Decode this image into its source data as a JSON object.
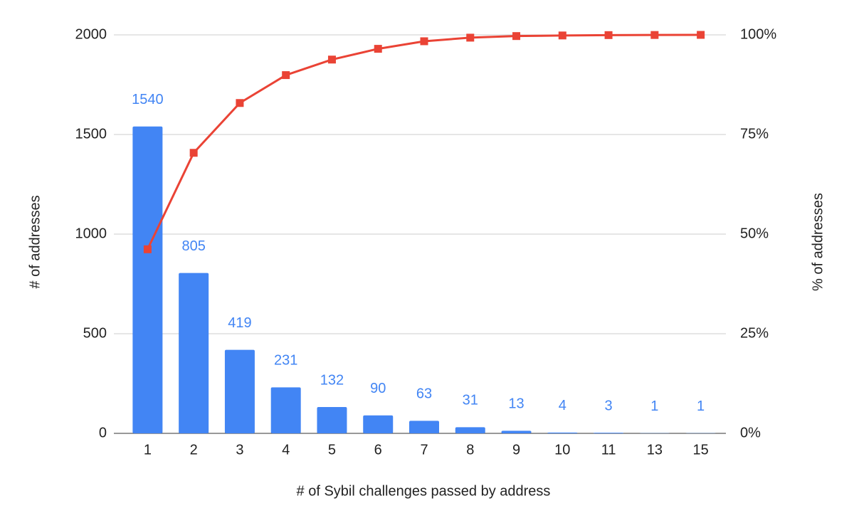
{
  "chart_data": {
    "type": "bar-line",
    "x_label": "# of Sybil challenges passed by address",
    "y_label": "# of addresses",
    "y2_label": "% of addresses",
    "categories": [
      "1",
      "2",
      "3",
      "4",
      "5",
      "6",
      "7",
      "8",
      "9",
      "10",
      "11",
      "13",
      "15"
    ],
    "series": [
      {
        "name": "# of addresses",
        "type": "bar",
        "color": "#4285f4",
        "values": [
          1540,
          805,
          419,
          231,
          132,
          90,
          63,
          31,
          13,
          4,
          3,
          1,
          1
        ]
      },
      {
        "name": "% of addresses",
        "type": "line",
        "axis": "y2",
        "color": "#ea4335",
        "values": [
          46.2,
          70.4,
          82.9,
          89.9,
          93.8,
          96.5,
          98.4,
          99.3,
          99.7,
          99.85,
          99.94,
          99.97,
          100
        ]
      }
    ],
    "ylim": [
      0,
      2000
    ],
    "yticks": [
      0,
      500,
      1000,
      1500,
      2000
    ],
    "y2lim": [
      0,
      100
    ],
    "y2ticks": [
      {
        "value": 0,
        "label": "0%"
      },
      {
        "value": 25,
        "label": "25%"
      },
      {
        "value": 50,
        "label": "50%"
      },
      {
        "value": 75,
        "label": "75%"
      },
      {
        "value": 100,
        "label": "100%"
      }
    ],
    "grid": true
  }
}
